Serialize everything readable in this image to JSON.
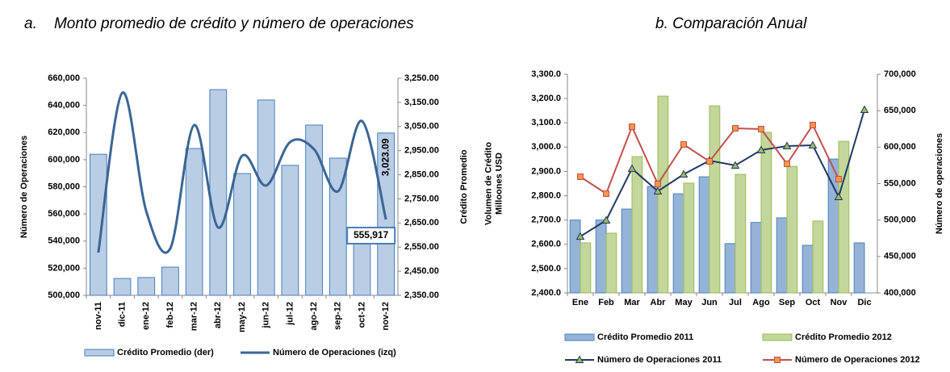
{
  "chart_data": [
    {
      "type": "combo",
      "title": "a.    Monto promedio de crédito y número de operaciones",
      "ylabel": [
        "Número de Operaciones"
      ],
      "y2label": [
        "Crédito Promedio"
      ],
      "categories": [
        "nov-11",
        "dic-11",
        "ene-12",
        "feb-12",
        "mar-12",
        "abr-12",
        "may-12",
        "jun-12",
        "jul-12",
        "ago-12",
        "sep-12",
        "oct-12",
        "nov-12"
      ],
      "ylim": [
        500000,
        660000
      ],
      "yticks": [
        {
          "value": 500000,
          "label": "500,000"
        },
        {
          "value": 520000,
          "label": "520,000"
        },
        {
          "value": 540000,
          "label": "540,000"
        },
        {
          "value": 560000,
          "label": "560,000"
        },
        {
          "value": 580000,
          "label": "580,000"
        },
        {
          "value": 600000,
          "label": "600,000"
        },
        {
          "value": 620000,
          "label": "620,000"
        },
        {
          "value": 640000,
          "label": "640,000"
        },
        {
          "value": 660000,
          "label": "660,000"
        }
      ],
      "y2lim": [
        2350,
        3250
      ],
      "y2ticks": [
        {
          "value": 2350,
          "label": "2,350.00"
        },
        {
          "value": 2450,
          "label": "2,450.00"
        },
        {
          "value": 2550,
          "label": "2,550.00"
        },
        {
          "value": 2650,
          "label": "2,650.00"
        },
        {
          "value": 2750,
          "label": "2,750.00"
        },
        {
          "value": 2850,
          "label": "2,850.00"
        },
        {
          "value": 2950,
          "label": "2,950.00"
        },
        {
          "value": 3050,
          "label": "3,050.00"
        },
        {
          "value": 3150,
          "label": "3,150.00"
        },
        {
          "value": 3250,
          "label": "3,250.00"
        }
      ],
      "smooth": true,
      "series": [
        {
          "name": "Crédito Promedio (der)",
          "kind": "bar",
          "axis": "y2",
          "color": "#b9cde5",
          "stroke": "#4a7ebb",
          "values": [
            2935,
            2420,
            2424,
            2467,
            2959,
            3203,
            2855,
            3160,
            2889,
            3056,
            2919,
            2604,
            3023.09
          ],
          "value_labels": [
            null,
            null,
            null,
            null,
            null,
            null,
            null,
            null,
            null,
            null,
            null,
            null,
            "3,023.09"
          ]
        },
        {
          "name": "Número de Operaciones (izq)",
          "kind": "line",
          "color": "#3a6595",
          "values": [
            531500,
            649300,
            561900,
            534500,
            625500,
            550000,
            602900,
            580900,
            613000,
            607700,
            576700,
            628500,
            555917
          ],
          "value_labels": [
            null,
            null,
            null,
            null,
            null,
            null,
            null,
            null,
            null,
            null,
            null,
            null,
            "555,917"
          ]
        }
      ]
    },
    {
      "type": "combo",
      "title": "b. Comparación Anual",
      "ylabel": [
        "Volumen de Crédito",
        "Milloones USD"
      ],
      "y2label": [
        "Número de operaciones"
      ],
      "categories": [
        "Ene",
        "Feb",
        "Mar",
        "Abr",
        "May",
        "Jun",
        "Jul",
        "Ago",
        "Sep",
        "Oct",
        "Nov",
        "Dic"
      ],
      "ylim": [
        2400,
        3300
      ],
      "yticks": [
        {
          "value": 2400,
          "label": "2,400.0"
        },
        {
          "value": 2500,
          "label": "2,500.0"
        },
        {
          "value": 2600,
          "label": "2,600.0"
        },
        {
          "value": 2700,
          "label": "2,700.0"
        },
        {
          "value": 2800,
          "label": "2,800.0"
        },
        {
          "value": 2900,
          "label": "2,900.0"
        },
        {
          "value": 3000,
          "label": "3,000.0"
        },
        {
          "value": 3100,
          "label": "3,100.0"
        },
        {
          "value": 3200,
          "label": "3,200.0"
        },
        {
          "value": 3300,
          "label": "3,300.0"
        }
      ],
      "y2lim": [
        400000,
        700000
      ],
      "y2ticks": [
        {
          "value": 400000,
          "label": "400,000"
        },
        {
          "value": 450000,
          "label": "450,000"
        },
        {
          "value": 500000,
          "label": "500,000"
        },
        {
          "value": 550000,
          "label": "550,000"
        },
        {
          "value": 600000,
          "label": "600,000"
        },
        {
          "value": 650000,
          "label": "650,000"
        },
        {
          "value": 700000,
          "label": "700,000"
        }
      ],
      "smooth": false,
      "series": [
        {
          "name": "Crédito Promedio 2011",
          "kind": "bar",
          "color": "#95b3d7",
          "stroke": "#4f81bd",
          "values": [
            2700,
            2700,
            2745,
            2838,
            2808,
            2878,
            2603,
            2690,
            2709,
            2596,
            2951,
            2606
          ]
        },
        {
          "name": "Crédito Promedio 2012",
          "kind": "bar",
          "color": "#c3d69b",
          "stroke": "#9bbb59",
          "values": [
            2606,
            2646,
            2961,
            3210,
            2852,
            3170,
            2888,
            3061,
            2921,
            2696,
            3024,
            null
          ]
        },
        {
          "name": "Número de Operaciones 2011",
          "kind": "line",
          "axis": "y2",
          "color": "#1f3864",
          "marker": "triangle",
          "marker_color": "#9bbb59",
          "values": [
            477400,
            499600,
            570500,
            539500,
            562700,
            581500,
            574900,
            596000,
            601500,
            602600,
            531700,
            651300
          ]
        },
        {
          "name": "Número de Operaciones 2012",
          "kind": "line",
          "axis": "y2",
          "color": "#c0504d",
          "marker": "square",
          "marker_color": "#f79646",
          "values": [
            559400,
            536200,
            628000,
            549400,
            603700,
            580400,
            625800,
            624700,
            577100,
            630300,
            556100,
            null
          ]
        }
      ]
    }
  ]
}
